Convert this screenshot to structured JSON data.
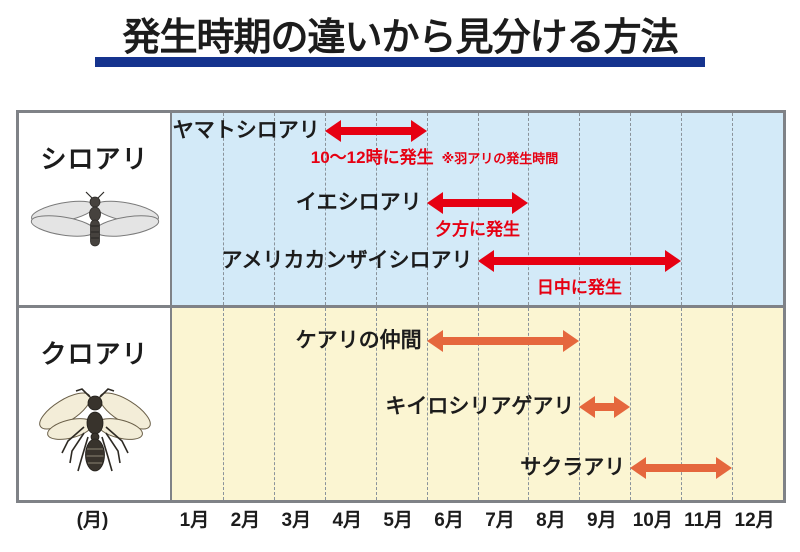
{
  "title": "発生時期の違いから見分ける方法",
  "title_underline_color": "#15338e",
  "axis": {
    "unit_label": "(月)",
    "months": [
      "1月",
      "2月",
      "3月",
      "4月",
      "5月",
      "6月",
      "7月",
      "8月",
      "9月",
      "10月",
      "11月",
      "12月"
    ]
  },
  "chart_data": {
    "type": "bar",
    "subtype": "timeline-range",
    "title": "発生時期の違いから見分ける方法",
    "x_unit": "月",
    "x_range": [
      1,
      12
    ],
    "x_ticks": [
      "1月",
      "2月",
      "3月",
      "4月",
      "5月",
      "6月",
      "7月",
      "8月",
      "9月",
      "10月",
      "11月",
      "12月"
    ],
    "grid": "dashed-monthly-vertical",
    "legend_position": "none",
    "groups": [
      {
        "label": "シロアリ",
        "insect": "termite-illustration",
        "panel_bg": "#d3eaf8",
        "arrow_color": "#e60012",
        "items": [
          {
            "label": "ヤマトシロアリ",
            "range_months": [
              4,
              5
            ],
            "time_of_day": "10〜12時に発生",
            "note": "※羽アリの発生時間"
          },
          {
            "label": "イエシロアリ",
            "range_months": [
              6,
              7
            ],
            "time_of_day": "夕方に発生",
            "note": ""
          },
          {
            "label": "アメリカカンザイシロアリ",
            "range_months": [
              7,
              10
            ],
            "time_of_day": "日中に発生",
            "note": ""
          }
        ]
      },
      {
        "label": "クロアリ",
        "insect": "ant-illustration",
        "panel_bg": "#fbf5d2",
        "arrow_color": "#e5673d",
        "items": [
          {
            "label": "ケアリの仲間",
            "range_months": [
              6,
              8
            ],
            "time_of_day": "",
            "note": ""
          },
          {
            "label": "キイロシリアゲアリ",
            "range_months": [
              9,
              9
            ],
            "time_of_day": "",
            "note": ""
          },
          {
            "label": "サクラアリ",
            "range_months": [
              10,
              11
            ],
            "time_of_day": "",
            "note": ""
          }
        ]
      }
    ]
  }
}
